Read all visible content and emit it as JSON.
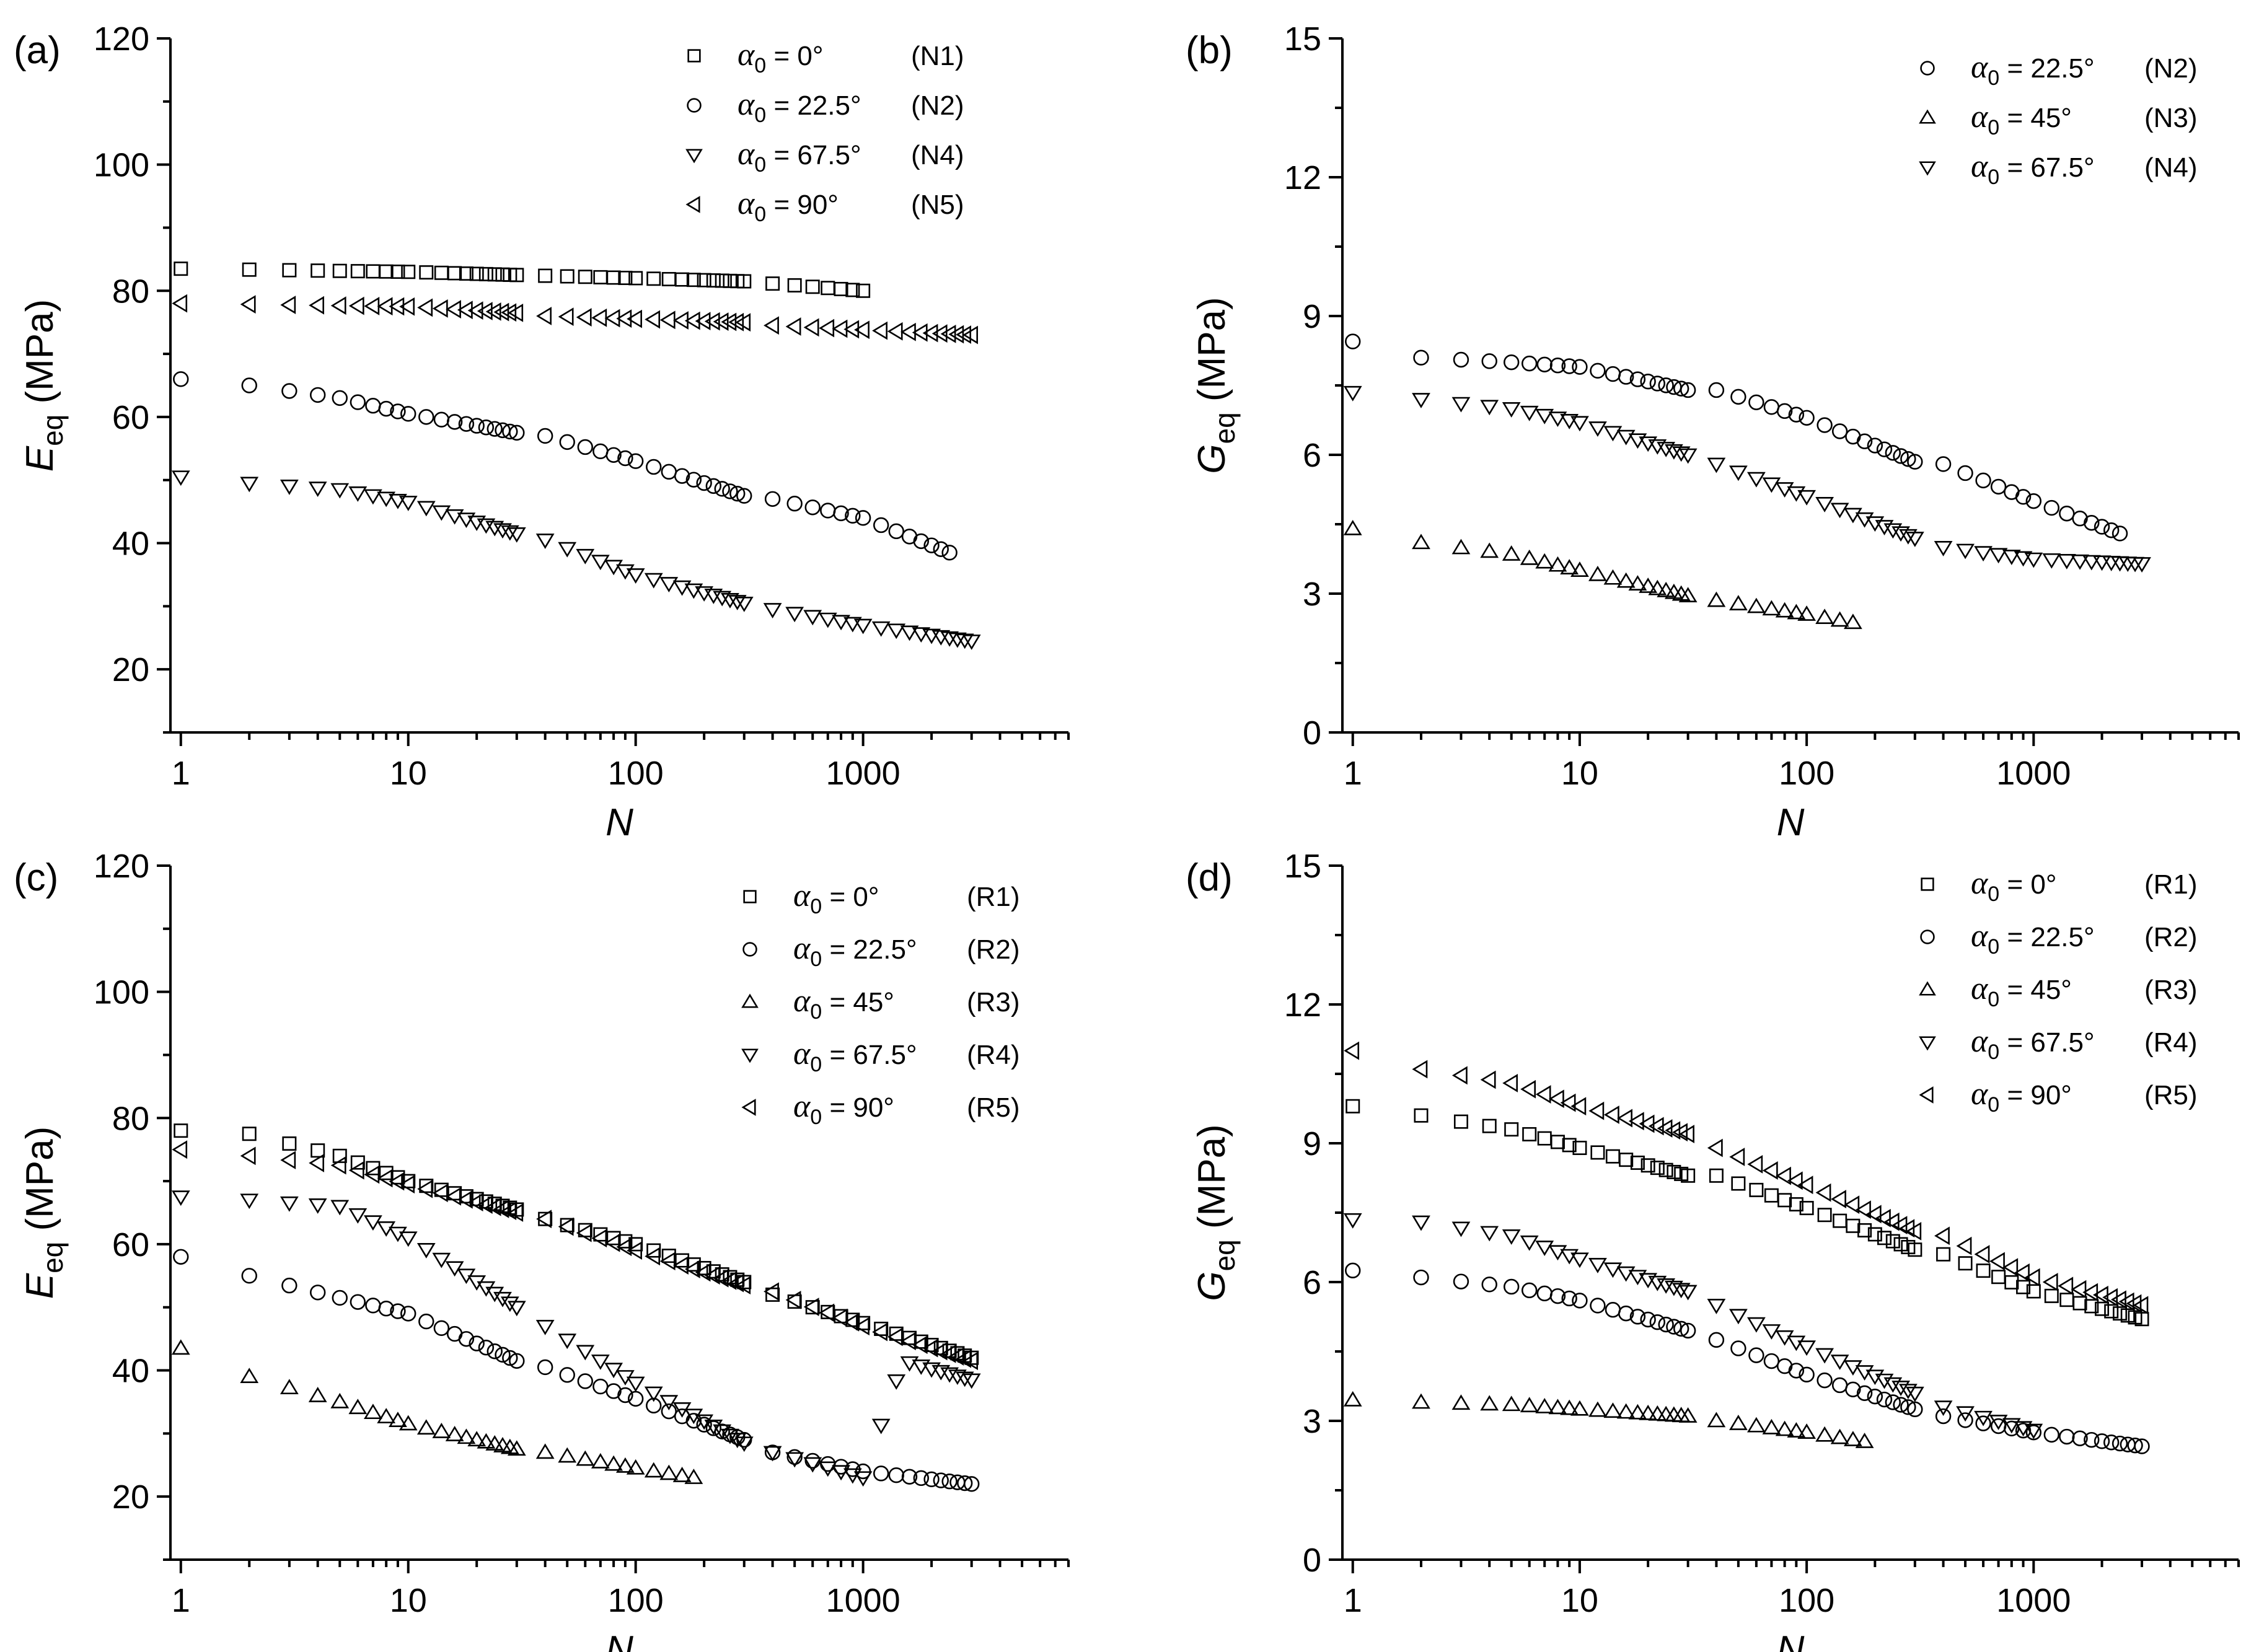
{
  "chart_data": [
    {
      "type": "scatter",
      "panel": "(a)",
      "xlabel": "N",
      "ylabel_main": "E",
      "ylabel_sub": "eq",
      "ylabel_unit": "(MPa)",
      "xscale": "log",
      "xlim": [
        0.9,
        8000
      ],
      "ylim": [
        10,
        120
      ],
      "yticks": [
        20,
        40,
        60,
        80,
        100,
        120
      ],
      "xticks": [
        1,
        10,
        100,
        1000
      ],
      "xtick_labels": [
        "1",
        "10",
        "100",
        "1000"
      ],
      "legend_position": "top-right",
      "series": [
        {
          "name": "α0 = 0° (N1)",
          "legend_alpha": "α",
          "legend_sub": "0",
          "legend_text": " = 0°",
          "legend_code": "(N1)",
          "marker": "square",
          "n_max": 1000,
          "anchors": [
            [
              1,
              83.5
            ],
            [
              10,
              83
            ],
            [
              30,
              82.5
            ],
            [
              100,
              82
            ],
            [
              300,
              81.5
            ],
            [
              1000,
              80
            ]
          ]
        },
        {
          "name": "α0 = 22.5° (N2)",
          "legend_alpha": "α",
          "legend_sub": "0",
          "legend_text": " = 22.5°",
          "legend_code": "(N2)",
          "marker": "circle",
          "n_max": 2400,
          "anchors": [
            [
              1,
              66
            ],
            [
              2,
              65
            ],
            [
              5,
              63
            ],
            [
              10,
              60.5
            ],
            [
              30,
              57.5
            ],
            [
              40,
              57
            ],
            [
              100,
              53
            ],
            [
              300,
              47.5
            ],
            [
              400,
              47
            ],
            [
              1000,
              44
            ],
            [
              2400,
              38.5
            ]
          ]
        },
        {
          "name": "α0 = 67.5° (N4)",
          "legend_alpha": "α",
          "legend_sub": "0",
          "legend_text": " = 67.5°",
          "legend_code": "(N4)",
          "marker": "triangle-down",
          "n_max": 3000,
          "anchors": [
            [
              1,
              50.5
            ],
            [
              2,
              49.5
            ],
            [
              5,
              48.5
            ],
            [
              10,
              46.5
            ],
            [
              30,
              41.5
            ],
            [
              40,
              40.5
            ],
            [
              100,
              35
            ],
            [
              300,
              30.5
            ],
            [
              400,
              29.5
            ],
            [
              1000,
              27
            ],
            [
              3000,
              24.5
            ]
          ]
        },
        {
          "name": "α0 = 90° (N5)",
          "legend_alpha": "α",
          "legend_sub": "0",
          "legend_text": " = 90°",
          "legend_code": "(N5)",
          "marker": "triangle-left",
          "n_max": 3000,
          "anchors": [
            [
              1,
              78
            ],
            [
              10,
              77.5
            ],
            [
              30,
              76.5
            ],
            [
              40,
              76
            ],
            [
              300,
              75
            ],
            [
              400,
              74.5
            ],
            [
              3000,
              73
            ]
          ]
        }
      ]
    },
    {
      "type": "scatter",
      "panel": "(b)",
      "xlabel": "N",
      "ylabel_main": "G",
      "ylabel_sub": "eq",
      "ylabel_unit": "(MPa)",
      "xscale": "log",
      "xlim": [
        0.9,
        8000
      ],
      "ylim": [
        0,
        15
      ],
      "yticks": [
        0,
        3,
        6,
        9,
        12,
        15
      ],
      "xticks": [
        1,
        10,
        100,
        1000
      ],
      "xtick_labels": [
        "1",
        "10",
        "100",
        "1000"
      ],
      "legend_position": "top-right",
      "series": [
        {
          "name": "α0 = 22.5° (N2)",
          "legend_alpha": "α",
          "legend_sub": "0",
          "legend_text": " = 22.5°",
          "legend_code": "(N2)",
          "marker": "circle",
          "n_max": 2400,
          "anchors": [
            [
              1,
              8.45
            ],
            [
              2,
              8.1
            ],
            [
              5,
              8.0
            ],
            [
              10,
              7.9
            ],
            [
              30,
              7.4
            ],
            [
              40,
              7.4
            ],
            [
              100,
              6.8
            ],
            [
              300,
              5.85
            ],
            [
              400,
              5.8
            ],
            [
              1000,
              5.0
            ],
            [
              2400,
              4.3
            ]
          ]
        },
        {
          "name": "α0 = 45° (N3)",
          "legend_alpha": "α",
          "legend_sub": "0",
          "legend_text": " = 45°",
          "legend_code": "(N3)",
          "marker": "triangle-up",
          "n_max": 170,
          "anchors": [
            [
              1,
              4.4
            ],
            [
              2,
              4.1
            ],
            [
              5,
              3.85
            ],
            [
              10,
              3.5
            ],
            [
              30,
              2.95
            ],
            [
              40,
              2.85
            ],
            [
              100,
              2.55
            ],
            [
              170,
              2.35
            ]
          ]
        },
        {
          "name": "α0 = 67.5° (N4)",
          "legend_alpha": "α",
          "legend_sub": "0",
          "legend_text": " = 67.5°",
          "legend_code": "(N4)",
          "marker": "triangle-down",
          "n_max": 3000,
          "anchors": [
            [
              1,
              7.35
            ],
            [
              2,
              7.2
            ],
            [
              5,
              7.0
            ],
            [
              10,
              6.7
            ],
            [
              30,
              6.0
            ],
            [
              40,
              5.8
            ],
            [
              100,
              5.1
            ],
            [
              300,
              4.2
            ],
            [
              400,
              4.0
            ],
            [
              1000,
              3.75
            ],
            [
              3000,
              3.65
            ]
          ]
        }
      ]
    },
    {
      "type": "scatter",
      "panel": "(c)",
      "xlabel": "N",
      "ylabel_main": "E",
      "ylabel_sub": "eq",
      "ylabel_unit": "(MPa)",
      "xscale": "log",
      "xlim": [
        0.9,
        8000
      ],
      "ylim": [
        10,
        120
      ],
      "yticks": [
        20,
        40,
        60,
        80,
        100,
        120
      ],
      "xticks": [
        1,
        10,
        100,
        1000
      ],
      "xtick_labels": [
        "1",
        "10",
        "100",
        "1000"
      ],
      "legend_position": "top-right",
      "series": [
        {
          "name": "α0 = 0° (R1)",
          "legend_alpha": "α",
          "legend_sub": "0",
          "legend_text": " = 0°",
          "legend_code": "(R1)",
          "marker": "square",
          "n_max": 3000,
          "anchors": [
            [
              1,
              78
            ],
            [
              2,
              77.5
            ],
            [
              5,
              74
            ],
            [
              10,
              70
            ],
            [
              30,
              65.5
            ],
            [
              40,
              64
            ],
            [
              100,
              60
            ],
            [
              300,
              54
            ],
            [
              400,
              52
            ],
            [
              1000,
              47.5
            ],
            [
              3000,
              42
            ]
          ]
        },
        {
          "name": "α0 = 22.5° (R2)",
          "legend_alpha": "α",
          "legend_sub": "0",
          "legend_text": " = 22.5°",
          "legend_code": "(R2)",
          "marker": "circle",
          "n_max": 3000,
          "anchors": [
            [
              1,
              58
            ],
            [
              2,
              55
            ],
            [
              5,
              51.5
            ],
            [
              10,
              49
            ],
            [
              30,
              41.5
            ],
            [
              40,
              40.5
            ],
            [
              100,
              35.5
            ],
            [
              300,
              29
            ],
            [
              400,
              27
            ],
            [
              1000,
              24
            ],
            [
              3000,
              22
            ]
          ]
        },
        {
          "name": "α0 = 45° (R3)",
          "legend_alpha": "α",
          "legend_sub": "0",
          "legend_text": " = 45°",
          "legend_code": "(R3)",
          "marker": "triangle-up",
          "n_max": 180,
          "anchors": [
            [
              1,
              43.5
            ],
            [
              2,
              39
            ],
            [
              5,
              35
            ],
            [
              10,
              31.5
            ],
            [
              30,
              27.5
            ],
            [
              40,
              27
            ],
            [
              100,
              24.5
            ],
            [
              180,
              23
            ]
          ]
        },
        {
          "name": "α0 = 67.5° (R4)",
          "legend_alpha": "α",
          "legend_sub": "0",
          "legend_text": " = 67.5°",
          "legend_code": "(R4)",
          "marker": "triangle-down",
          "n_max": 3000,
          "anchors": [
            [
              1,
              67.5
            ],
            [
              2,
              67
            ],
            [
              5,
              66
            ],
            [
              10,
              61
            ],
            [
              30,
              50
            ],
            [
              40,
              47
            ],
            [
              100,
              38
            ],
            [
              300,
              28.5
            ],
            [
              400,
              27
            ],
            [
              1000,
              23
            ],
            [
              1500,
              41.5
            ],
            [
              3000,
              38.5
            ]
          ]
        },
        {
          "name": "α0 = 90° (R5)",
          "legend_alpha": "α",
          "legend_sub": "0",
          "legend_text": " = 90°",
          "legend_code": "(R5)",
          "marker": "triangle-left",
          "n_max": 3000,
          "anchors": [
            [
              1,
              75
            ],
            [
              2,
              74
            ],
            [
              5,
              72.5
            ],
            [
              10,
              69.5
            ],
            [
              30,
              65
            ],
            [
              40,
              64
            ],
            [
              100,
              59
            ],
            [
              300,
              53.5
            ],
            [
              400,
              52.5
            ],
            [
              1000,
              47
            ],
            [
              3000,
              41.5
            ]
          ]
        }
      ]
    },
    {
      "type": "scatter",
      "panel": "(d)",
      "xlabel": "N",
      "ylabel_main": "G",
      "ylabel_sub": "eq",
      "ylabel_unit": "(MPa)",
      "xscale": "log",
      "xlim": [
        0.9,
        8000
      ],
      "ylim": [
        0,
        15
      ],
      "yticks": [
        0,
        3,
        6,
        9,
        12,
        15
      ],
      "xticks": [
        1,
        10,
        100,
        1000
      ],
      "xtick_labels": [
        "1",
        "10",
        "100",
        "1000"
      ],
      "legend_position": "top-right",
      "series": [
        {
          "name": "α0 = 0° (R1)",
          "legend_alpha": "α",
          "legend_sub": "0",
          "legend_text": " = 0°",
          "legend_code": "(R1)",
          "marker": "square",
          "n_max": 3000,
          "anchors": [
            [
              1,
              9.8
            ],
            [
              2,
              9.6
            ],
            [
              5,
              9.3
            ],
            [
              10,
              8.9
            ],
            [
              30,
              8.3
            ],
            [
              40,
              8.3
            ],
            [
              100,
              7.6
            ],
            [
              300,
              6.7
            ],
            [
              400,
              6.6
            ],
            [
              1000,
              5.8
            ],
            [
              3000,
              5.2
            ]
          ]
        },
        {
          "name": "α0 = 22.5° (R2)",
          "legend_alpha": "α",
          "legend_sub": "0",
          "legend_text": " = 22.5°",
          "legend_code": "(R2)",
          "marker": "circle",
          "n_max": 3000,
          "anchors": [
            [
              1,
              6.25
            ],
            [
              2,
              6.1
            ],
            [
              5,
              5.9
            ],
            [
              10,
              5.6
            ],
            [
              30,
              4.95
            ],
            [
              40,
              4.75
            ],
            [
              100,
              4.0
            ],
            [
              300,
              3.25
            ],
            [
              400,
              3.1
            ],
            [
              1000,
              2.75
            ],
            [
              3000,
              2.45
            ]
          ]
        },
        {
          "name": "α0 = 45° (R3)",
          "legend_alpha": "α",
          "legend_sub": "0",
          "legend_text": " = 45°",
          "legend_code": "(R3)",
          "marker": "triangle-up",
          "n_max": 180,
          "anchors": [
            [
              1,
              3.45
            ],
            [
              2,
              3.4
            ],
            [
              5,
              3.35
            ],
            [
              10,
              3.25
            ],
            [
              30,
              3.1
            ],
            [
              40,
              3.0
            ],
            [
              100,
              2.75
            ],
            [
              180,
              2.55
            ]
          ]
        },
        {
          "name": "α0 = 67.5° (R4)",
          "legend_alpha": "α",
          "legend_sub": "0",
          "legend_text": " = 67.5°",
          "legend_code": "(R4)",
          "marker": "triangle-down",
          "n_max": 1000,
          "anchors": [
            [
              1,
              7.35
            ],
            [
              2,
              7.3
            ],
            [
              5,
              7.0
            ],
            [
              10,
              6.5
            ],
            [
              30,
              5.8
            ],
            [
              40,
              5.5
            ],
            [
              100,
              4.6
            ],
            [
              300,
              3.6
            ],
            [
              400,
              3.3
            ],
            [
              1000,
              2.8
            ]
          ]
        },
        {
          "name": "α0 = 90° (R5)",
          "legend_alpha": "α",
          "legend_sub": "0",
          "legend_text": " = 90°",
          "legend_code": "(R5)",
          "marker": "triangle-left",
          "n_max": 3000,
          "anchors": [
            [
              1,
              11.0
            ],
            [
              2,
              10.6
            ],
            [
              5,
              10.3
            ],
            [
              10,
              9.8
            ],
            [
              30,
              9.2
            ],
            [
              40,
              8.9
            ],
            [
              100,
              8.1
            ],
            [
              300,
              7.1
            ],
            [
              400,
              7.0
            ],
            [
              1000,
              6.1
            ],
            [
              3000,
              5.5
            ]
          ]
        }
      ]
    }
  ]
}
